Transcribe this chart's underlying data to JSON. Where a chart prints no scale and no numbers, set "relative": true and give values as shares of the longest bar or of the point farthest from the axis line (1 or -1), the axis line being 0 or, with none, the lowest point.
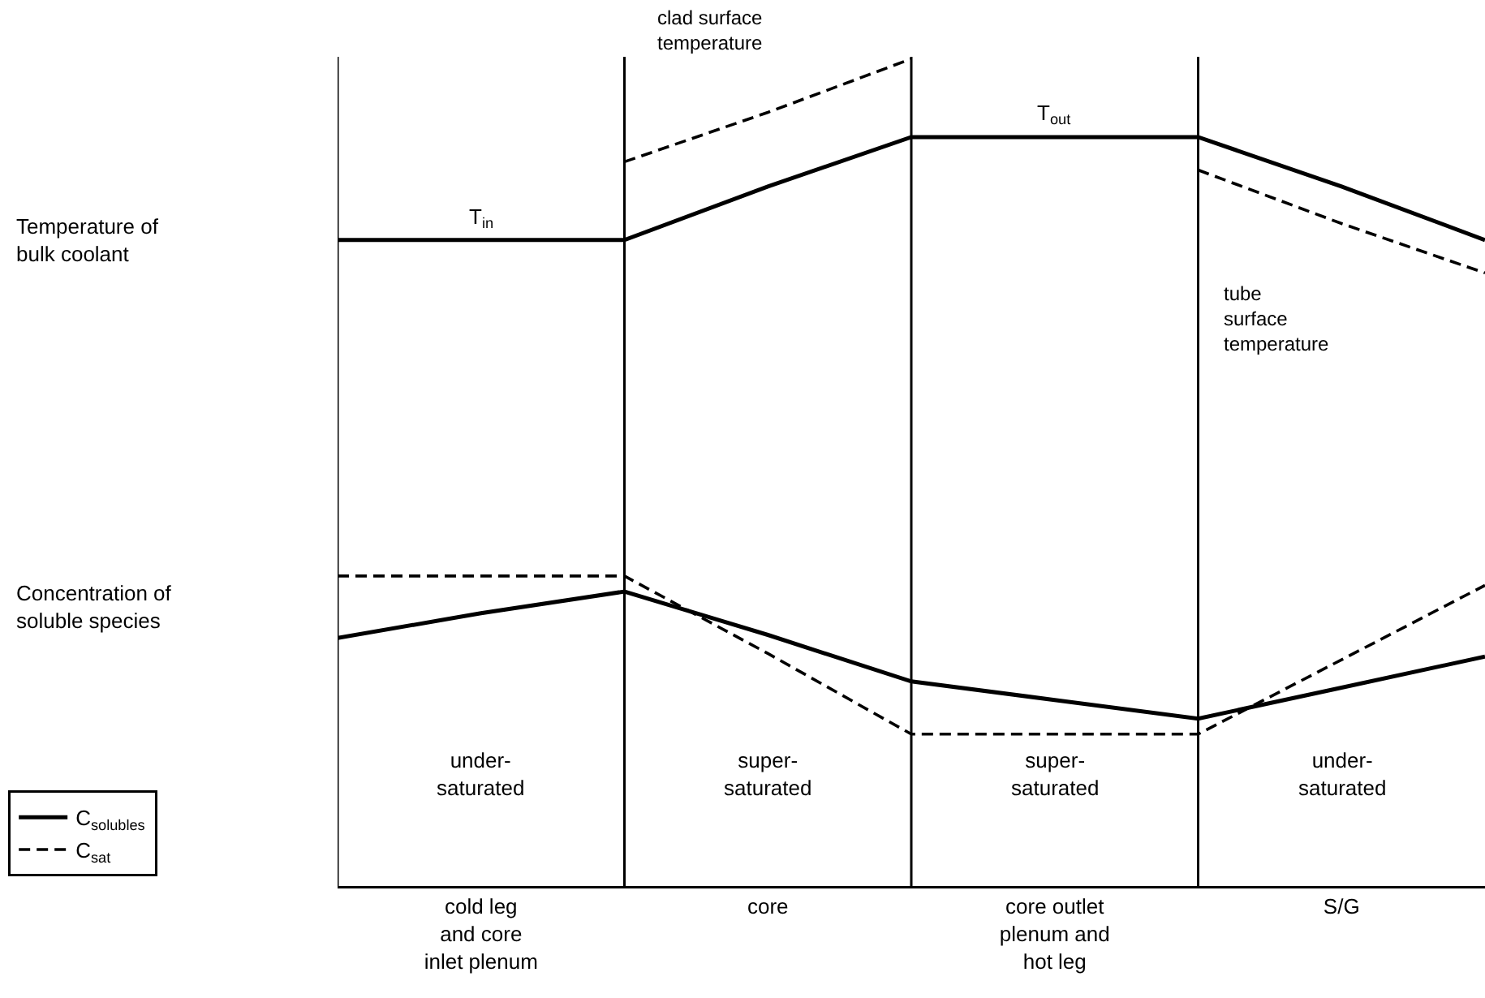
{
  "chart_data": [
    {
      "type": "line",
      "relative": true,
      "ylabel": "Temperature of\nbulk coolant",
      "categories": [
        null,
        "cold leg\nand core\ninlet plenum",
        null,
        "core",
        null,
        "core outlet\nplenum and\nhot leg",
        null,
        "S/G",
        null
      ],
      "tick_labels": false,
      "series": [
        {
          "color": "#000000",
          "line_style": "solid",
          "values": [
            0.56,
            0.56,
            0.56,
            0.69,
            0.81,
            0.81,
            0.81,
            0.69,
            0.56
          ]
        },
        {
          "color": "#000000",
          "line_style": "dashed",
          "values": [
            null,
            null,
            0.75,
            0.87,
            1,
            null,
            null,
            null,
            null
          ]
        },
        {
          "color": "#000000",
          "line_style": "dashed",
          "values": [
            null,
            null,
            null,
            null,
            null,
            null,
            0.73,
            0.6,
            0.48
          ]
        }
      ],
      "annotations": [
        {
          "text": "T$_{in}$",
          "x": "cold leg\nand core\ninlet plenum",
          "y": 0.56
        },
        {
          "text": "T$_{out}$",
          "x": "core outlet\nplenum and\nhot leg",
          "y": 0.81
        },
        "clad surface\ntemperature",
        "tube\nsurface\ntemperature"
      ],
      "grid": "x"
    },
    {
      "type": "line",
      "relative": true,
      "ylabel": "Concentration of\nsoluble species",
      "categories": [
        null,
        "cold leg\nand core\ninlet plenum",
        null,
        "core",
        null,
        "core outlet\nplenum and\nhot leg",
        null,
        "S/G",
        null
      ],
      "tick_labels": "x",
      "legend": "bottom left",
      "series": [
        {
          "name": "C$_{solubles}$",
          "color": "#000000",
          "line_style": "solid",
          "values": [
            0.8,
            0.88,
            0.95,
            0.81,
            0.66,
            0.6,
            0.54,
            0.64,
            0.74
          ]
        },
        {
          "name": "C$_{sat}$",
          "color": "#000000",
          "line_style": "dashed",
          "values": [
            1,
            1,
            1,
            0.75,
            0.49,
            0.49,
            0.49,
            0.73,
            0.97
          ]
        }
      ],
      "annotations": [
        "under-\nsaturated",
        "super-\nsaturated",
        "super-\nsaturated",
        "under-\nsaturated"
      ],
      "grid": "x"
    }
  ]
}
